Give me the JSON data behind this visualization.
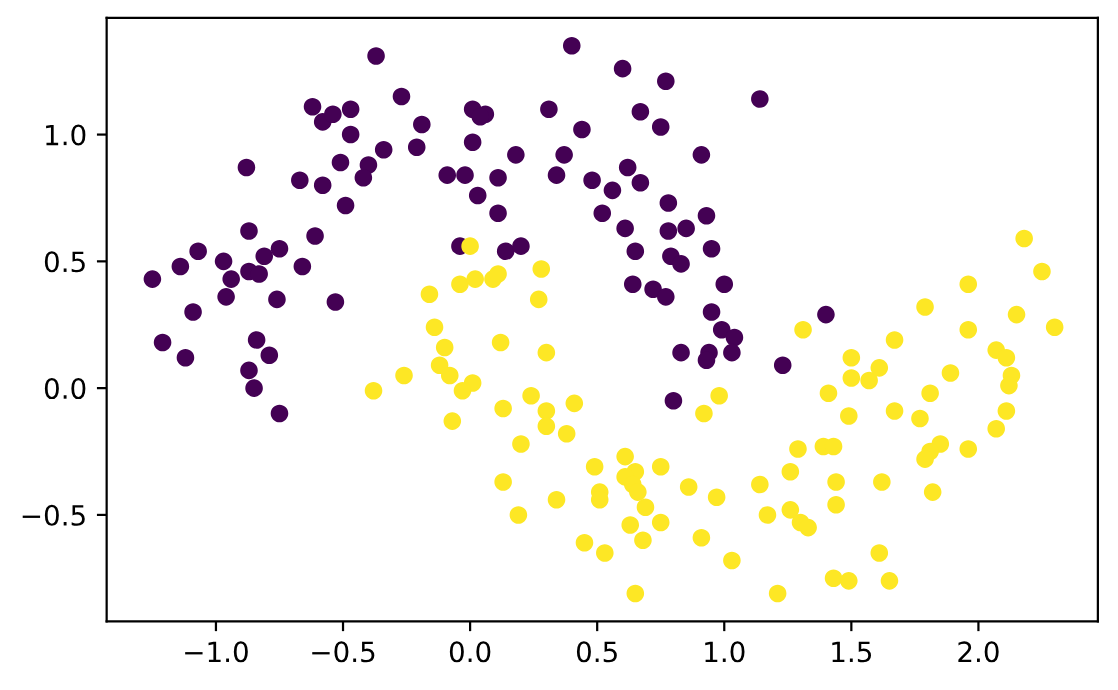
{
  "chart_data": {
    "type": "scatter",
    "marker": "circle",
    "grid": false,
    "xlim": [
      -1.43,
      2.47
    ],
    "ylim": [
      -0.92,
      1.46
    ],
    "xticks": [
      {
        "value": -1.0,
        "label": "−1.0"
      },
      {
        "value": -0.5,
        "label": "−0.5"
      },
      {
        "value": 0.0,
        "label": "0.0"
      },
      {
        "value": 0.5,
        "label": "0.5"
      },
      {
        "value": 1.0,
        "label": "1.0"
      },
      {
        "value": 1.5,
        "label": "1.5"
      },
      {
        "value": 2.0,
        "label": "2.0"
      }
    ],
    "yticks": [
      {
        "value": -0.5,
        "label": "−0.5"
      },
      {
        "value": 0.0,
        "label": "0.0"
      },
      {
        "value": 0.5,
        "label": "0.5"
      },
      {
        "value": 1.0,
        "label": "1.0"
      }
    ],
    "series": [
      {
        "color": "#440154",
        "x": [
          -0.37,
          -0.27,
          -0.62,
          -0.58,
          -0.54,
          -0.47,
          -0.47,
          -0.34,
          -0.21,
          -0.19,
          -0.88,
          -0.51,
          -0.4,
          -0.42,
          -0.67,
          -0.58,
          -0.49,
          -0.87,
          -0.61,
          -1.07,
          -1.14,
          -1.25,
          -0.97,
          -0.75,
          -0.81,
          -0.87,
          -0.83,
          -0.94,
          -0.66,
          -0.96,
          -0.76,
          -0.53,
          -1.09,
          -1.21,
          -1.12,
          -0.84,
          -0.79,
          -0.87,
          -0.85,
          -0.75,
          0.4,
          0.6,
          0.77,
          1.14,
          0.01,
          0.06,
          0.04,
          0.31,
          0.67,
          0.44,
          0.75,
          0.01,
          0.18,
          0.37,
          0.91,
          -0.09,
          -0.02,
          0.11,
          0.34,
          0.48,
          0.62,
          0.56,
          0.67,
          0.03,
          0.78,
          0.11,
          0.52,
          0.61,
          0.78,
          0.85,
          0.93,
          0.95,
          0.65,
          0.79,
          0.83,
          0.14,
          0.2,
          -0.04,
          0.64,
          0.72,
          0.77,
          1.0,
          0.95,
          1.4,
          0.99,
          1.04,
          1.03,
          0.83,
          0.94,
          0.93,
          0.8,
          1.23
        ],
        "values": [
          1.31,
          1.15,
          1.11,
          1.05,
          1.08,
          1.1,
          1.0,
          0.94,
          0.95,
          1.04,
          0.87,
          0.89,
          0.88,
          0.83,
          0.82,
          0.8,
          0.72,
          0.62,
          0.6,
          0.54,
          0.48,
          0.43,
          0.5,
          0.55,
          0.52,
          0.46,
          0.45,
          0.43,
          0.48,
          0.36,
          0.35,
          0.34,
          0.3,
          0.18,
          0.12,
          0.19,
          0.13,
          0.07,
          0.0,
          -0.1,
          1.35,
          1.26,
          1.21,
          1.14,
          1.1,
          1.08,
          1.07,
          1.1,
          1.09,
          1.02,
          1.03,
          0.97,
          0.92,
          0.92,
          0.92,
          0.84,
          0.84,
          0.83,
          0.84,
          0.82,
          0.87,
          0.78,
          0.81,
          0.76,
          0.73,
          0.69,
          0.69,
          0.63,
          0.62,
          0.63,
          0.68,
          0.55,
          0.54,
          0.52,
          0.49,
          0.54,
          0.56,
          0.56,
          0.41,
          0.39,
          0.36,
          0.41,
          0.3,
          0.29,
          0.23,
          0.2,
          0.14,
          0.14,
          0.14,
          0.11,
          -0.05,
          0.09
        ]
      },
      {
        "color": "#fde725",
        "x": [
          -0.38,
          -0.26,
          0.0,
          0.28,
          0.27,
          -0.16,
          -0.04,
          0.02,
          0.09,
          0.11,
          2.18,
          2.25,
          1.96,
          1.79,
          2.15,
          2.3,
          -0.14,
          -0.1,
          -0.12,
          -0.08,
          0.01,
          -0.03,
          -0.07,
          0.12,
          0.3,
          0.13,
          0.24,
          0.3,
          0.3,
          0.41,
          0.38,
          0.2,
          0.13,
          0.19,
          0.34,
          0.49,
          0.61,
          0.65,
          0.61,
          0.64,
          0.66,
          0.51,
          0.51,
          0.69,
          0.75,
          0.86,
          0.97,
          0.75,
          0.63,
          0.68,
          0.45,
          0.53,
          0.91,
          1.03,
          0.65,
          0.98,
          0.92,
          1.14,
          1.17,
          1.21,
          1.31,
          1.67,
          1.96,
          1.5,
          1.5,
          1.57,
          1.61,
          2.07,
          2.11,
          2.13,
          2.12,
          2.11,
          2.07,
          1.89,
          1.81,
          1.77,
          1.67,
          1.41,
          1.49,
          1.85,
          1.81,
          1.79,
          1.96,
          1.29,
          1.39,
          1.43,
          1.26,
          1.44,
          1.62,
          1.44,
          1.82,
          1.26,
          1.3,
          1.33,
          1.61,
          1.43,
          1.49,
          1.65
        ],
        "values": [
          -0.01,
          0.05,
          0.56,
          0.47,
          0.35,
          0.37,
          0.41,
          0.43,
          0.43,
          0.45,
          0.59,
          0.46,
          0.41,
          0.32,
          0.29,
          0.24,
          0.24,
          0.16,
          0.09,
          0.05,
          0.02,
          -0.01,
          -0.13,
          0.18,
          0.14,
          -0.08,
          -0.03,
          -0.09,
          -0.15,
          -0.06,
          -0.18,
          -0.22,
          -0.37,
          -0.5,
          -0.44,
          -0.31,
          -0.27,
          -0.33,
          -0.35,
          -0.38,
          -0.41,
          -0.41,
          -0.44,
          -0.47,
          -0.31,
          -0.39,
          -0.43,
          -0.53,
          -0.54,
          -0.6,
          -0.61,
          -0.65,
          -0.59,
          -0.68,
          -0.81,
          -0.03,
          -0.1,
          -0.38,
          -0.5,
          -0.81,
          0.23,
          0.19,
          0.23,
          0.12,
          0.04,
          0.03,
          0.08,
          0.15,
          0.12,
          0.05,
          0.01,
          -0.09,
          -0.16,
          0.06,
          -0.02,
          -0.12,
          -0.09,
          -0.02,
          -0.11,
          -0.22,
          -0.25,
          -0.28,
          -0.24,
          -0.24,
          -0.23,
          -0.23,
          -0.33,
          -0.37,
          -0.37,
          -0.46,
          -0.41,
          -0.48,
          -0.53,
          -0.55,
          -0.65,
          -0.75,
          -0.76,
          -0.76
        ]
      }
    ]
  }
}
